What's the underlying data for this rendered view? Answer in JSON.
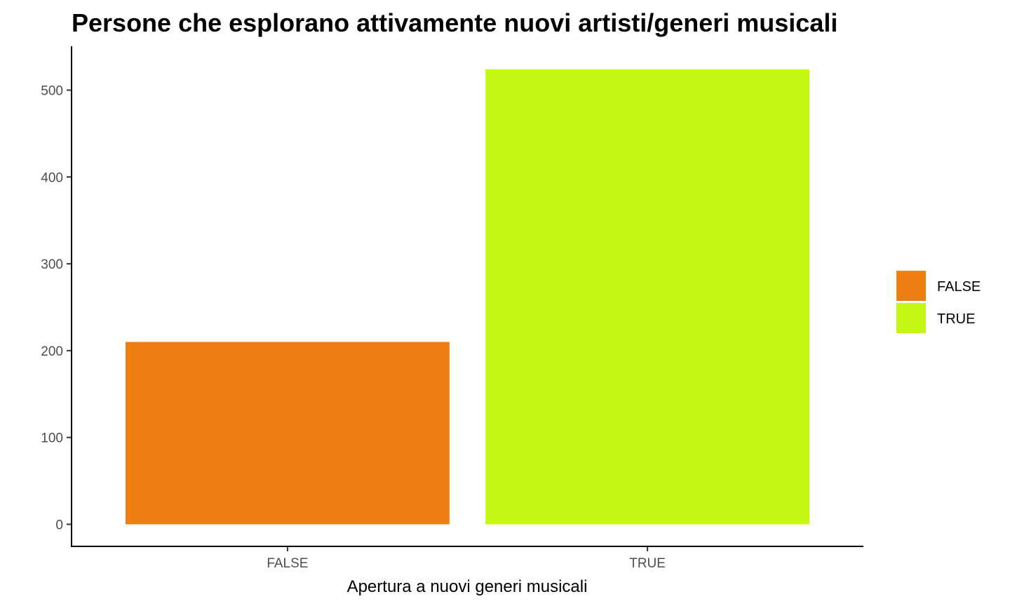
{
  "chart_data": {
    "type": "bar",
    "title": "Persone che esplorano attivamente nuovi artisti/generi musicali",
    "xlabel": "Apertura a nuovi generi musicali",
    "ylabel": "",
    "categories": [
      "FALSE",
      "TRUE"
    ],
    "values": [
      210,
      524
    ],
    "colors": [
      "#F07F13",
      "#C2F811"
    ],
    "ylim": [
      0,
      550
    ],
    "yticks": [
      0,
      100,
      200,
      300,
      400,
      500
    ],
    "grid": false,
    "legend": {
      "position": "right",
      "entries": [
        {
          "label": "FALSE",
          "color": "#F07F13"
        },
        {
          "label": "TRUE",
          "color": "#C2F811"
        }
      ]
    }
  }
}
